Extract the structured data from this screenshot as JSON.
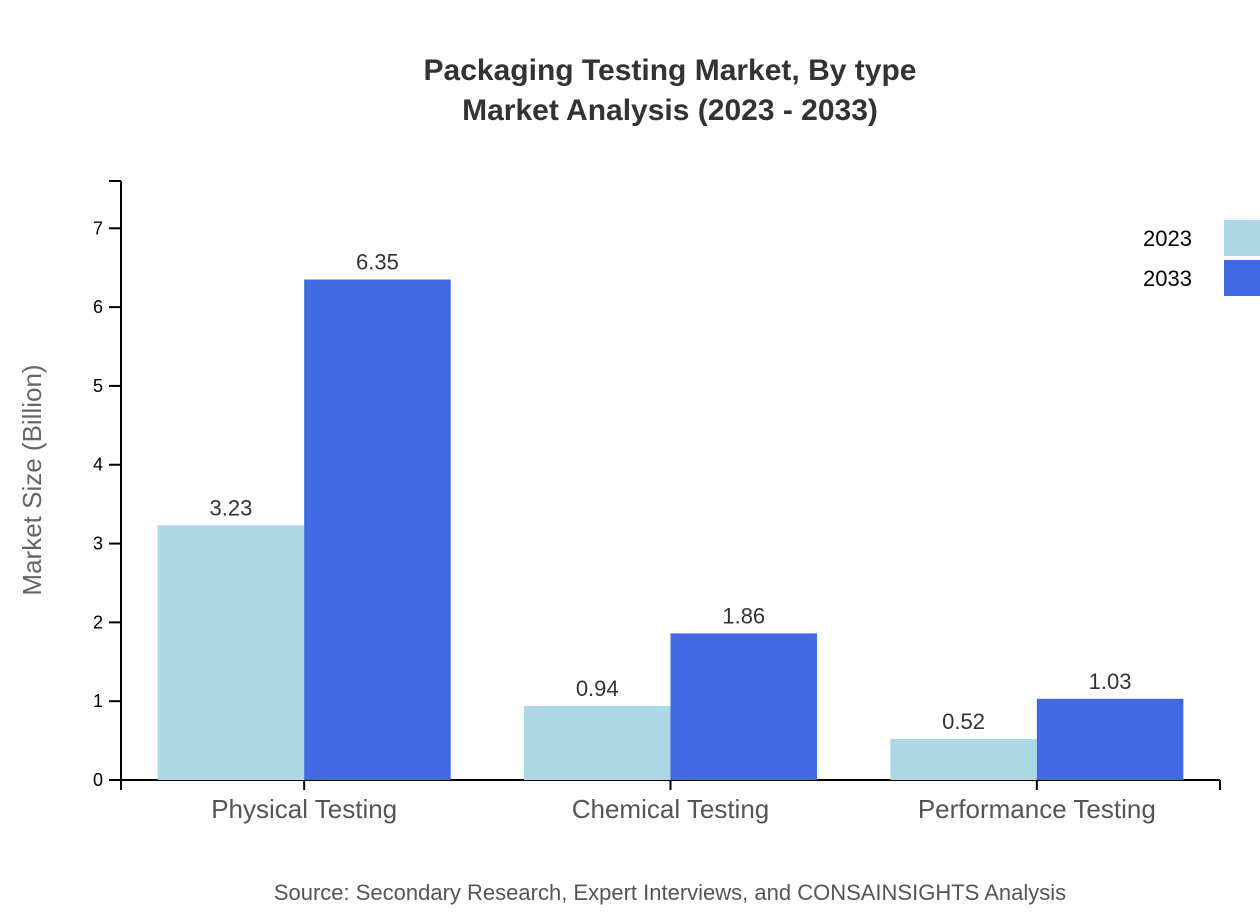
{
  "chart_data": {
    "type": "bar",
    "title": "Packaging Testing Market, By type",
    "subtitle": "Market Analysis (2023 - 2033)",
    "ylabel": "Market Size (Billion)",
    "xlabel": "",
    "categories": [
      "Physical Testing",
      "Chemical Testing",
      "Performance Testing"
    ],
    "series": [
      {
        "name": "2023",
        "color": "#add8e6",
        "values": [
          3.23,
          0.94,
          0.52
        ]
      },
      {
        "name": "2033",
        "color": "#4169e1",
        "values": [
          6.35,
          1.86,
          1.03
        ]
      }
    ],
    "ylim": [
      0,
      7.6
    ],
    "yticks": [
      0,
      1,
      2,
      3,
      4,
      5,
      6,
      7
    ],
    "grid": false,
    "legend_position": "top-right",
    "source": "Source: Secondary Research, Expert Interviews, and CONSAINSIGHTS Analysis"
  }
}
